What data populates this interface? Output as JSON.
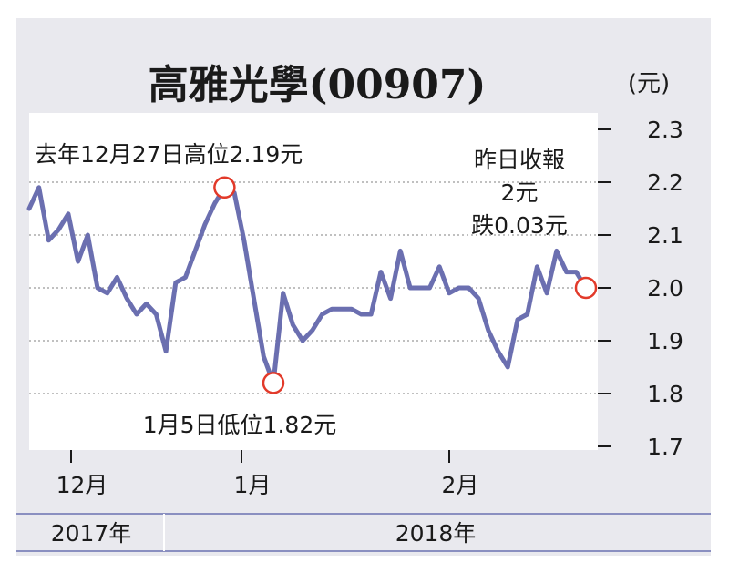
{
  "chart_data": {
    "type": "line",
    "title": "高雅光學(00907)",
    "unit": "(元)",
    "ylim": [
      1.7,
      2.3
    ],
    "yticks": [
      "2.3",
      "2.2",
      "2.1",
      "2.0",
      "1.9",
      "1.8",
      "1.7"
    ],
    "month_labels": [
      "12月",
      "1月",
      "2月"
    ],
    "year_labels": [
      "2017年",
      "2018年"
    ],
    "grid": true,
    "line_color": "#6b6fb0",
    "marker_color": "#e23a2a",
    "series": [
      {
        "values": [
          2.15,
          2.19,
          2.09,
          2.11,
          2.14,
          2.05,
          2.1,
          2.0,
          1.99,
          2.02,
          1.98,
          1.95,
          1.97,
          1.95,
          1.88,
          2.01,
          2.02,
          2.07,
          2.12,
          2.16,
          2.19,
          2.18,
          2.09,
          1.98,
          1.87,
          1.82,
          1.99,
          1.93,
          1.9,
          1.92,
          1.95,
          1.96,
          1.96,
          1.96,
          1.95,
          1.95,
          2.03,
          1.98,
          2.07,
          2.0,
          2.0,
          2.0,
          2.04,
          1.99,
          2.0,
          2.0,
          1.98,
          1.92,
          1.88,
          1.85,
          1.94,
          1.95,
          2.04,
          1.99,
          2.07,
          2.03,
          2.03,
          2.0
        ]
      }
    ],
    "annotations": {
      "high": "去年12月27日高位2.19元",
      "low": "1月5日低位1.82元",
      "close_line1": "昨日收報",
      "close_line2": "2元",
      "close_line3": "跌0.03元"
    }
  }
}
